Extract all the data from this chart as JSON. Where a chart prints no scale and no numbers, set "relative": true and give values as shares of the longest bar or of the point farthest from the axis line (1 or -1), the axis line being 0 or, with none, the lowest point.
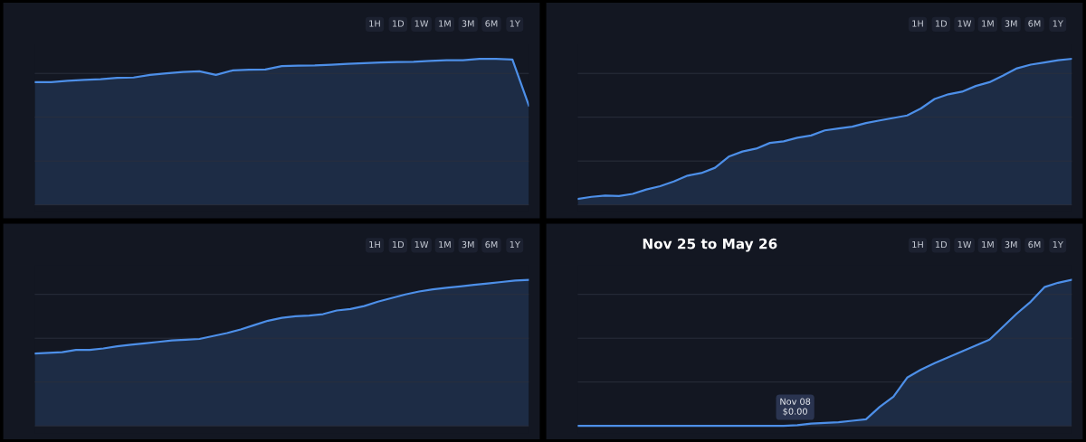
{
  "chart_data": [
    {
      "type": "area",
      "relative": true,
      "grid": "y",
      "categories": [
        null,
        null,
        null,
        null,
        null,
        null,
        null,
        null,
        null,
        null,
        null,
        null,
        null,
        null,
        null,
        null,
        null,
        null,
        null,
        null,
        null,
        null,
        null,
        null,
        null,
        null,
        null,
        null,
        null,
        null,
        null
      ],
      "series": [
        {
          "color": "#4d8fe8",
          "values": [
            0.84,
            0.84,
            0.85,
            0.856,
            0.86,
            0.87,
            0.872,
            0.89,
            0.9,
            0.91,
            0.914,
            0.89,
            0.92,
            0.925,
            0.927,
            0.95,
            0.953,
            0.955,
            0.96,
            0.965,
            0.97,
            0.975,
            0.978,
            0.98,
            0.985,
            0.99,
            0.99,
            1,
            1,
            0.995,
            0.68
          ]
        }
      ],
      "annotations": [
        "1H",
        "1D",
        "1W",
        "1M",
        "3M",
        "6M",
        "1Y"
      ]
    },
    {
      "type": "area",
      "relative": true,
      "grid": "y",
      "categories": [
        null,
        null,
        null,
        null,
        null,
        null,
        null,
        null,
        null,
        null,
        null,
        null,
        null,
        null,
        null,
        null,
        null,
        null,
        null,
        null,
        null,
        null,
        null,
        null,
        null,
        null,
        null,
        null,
        null,
        null,
        null,
        null,
        null,
        null,
        null,
        null,
        null
      ],
      "series": [
        {
          "color": "#4d8fe8",
          "values": [
            0.04,
            0.055,
            0.063,
            0.06,
            0.075,
            0.105,
            0.128,
            0.16,
            0.2,
            0.218,
            0.254,
            0.33,
            0.365,
            0.385,
            0.424,
            0.435,
            0.46,
            0.475,
            0.51,
            0.523,
            0.535,
            0.56,
            0.578,
            0.595,
            0.612,
            0.66,
            0.725,
            0.757,
            0.775,
            0.814,
            0.84,
            0.886,
            0.935,
            0.96,
            0.975,
            0.99,
            1
          ]
        }
      ],
      "annotations": [
        "1H",
        "1D",
        "1W",
        "1M",
        "3M",
        "6M",
        "1Y"
      ]
    },
    {
      "type": "area",
      "relative": true,
      "grid": "y",
      "categories": [
        null,
        null,
        null,
        null,
        null,
        null,
        null,
        null,
        null,
        null,
        null,
        null,
        null,
        null,
        null,
        null,
        null,
        null,
        null,
        null,
        null,
        null,
        null,
        null,
        null,
        null,
        null,
        null,
        null,
        null,
        null,
        null,
        null,
        null,
        null,
        null,
        null
      ],
      "series": [
        {
          "color": "#4d8fe8",
          "values": [
            0.495,
            0.5,
            0.505,
            0.52,
            0.52,
            0.53,
            0.545,
            0.555,
            0.565,
            0.575,
            0.585,
            0.59,
            0.595,
            0.615,
            0.635,
            0.66,
            0.69,
            0.72,
            0.74,
            0.75,
            0.755,
            0.765,
            0.79,
            0.8,
            0.82,
            0.85,
            0.875,
            0.9,
            0.92,
            0.935,
            0.945,
            0.955,
            0.965,
            0.975,
            0.985,
            0.995,
            1
          ]
        }
      ],
      "annotations": [
        "1H",
        "1D",
        "1W",
        "1M",
        "3M",
        "6M",
        "1Y"
      ]
    },
    {
      "type": "area",
      "relative": true,
      "grid": "y",
      "categories": [
        null,
        null,
        null,
        null,
        null,
        null,
        null,
        null,
        null,
        null,
        null,
        null,
        null,
        null,
        null,
        null,
        null,
        null,
        null,
        null,
        null,
        null,
        null,
        null,
        null,
        null,
        null,
        null,
        null,
        null,
        null,
        null,
        null,
        null,
        null,
        null,
        null
      ],
      "series": [
        {
          "color": "#4d8fe8",
          "values": [
            0,
            0,
            0,
            0,
            0,
            0,
            0,
            0,
            0,
            0,
            0,
            0,
            0,
            0,
            0,
            0,
            0.005,
            0.015,
            0.02,
            0.025,
            0.035,
            0.045,
            0.13,
            0.2,
            0.33,
            0.385,
            0.43,
            0.47,
            0.51,
            0.55,
            0.59,
            0.68,
            0.77,
            0.85,
            0.95,
            0.98,
            1
          ]
        }
      ],
      "annotations": [
        "1H",
        "1D",
        "1W",
        "1M",
        "3M",
        "6M",
        "1Y",
        "Nov 25 to May 26",
        "Nov 08\n$0.00"
      ]
    }
  ]
}
